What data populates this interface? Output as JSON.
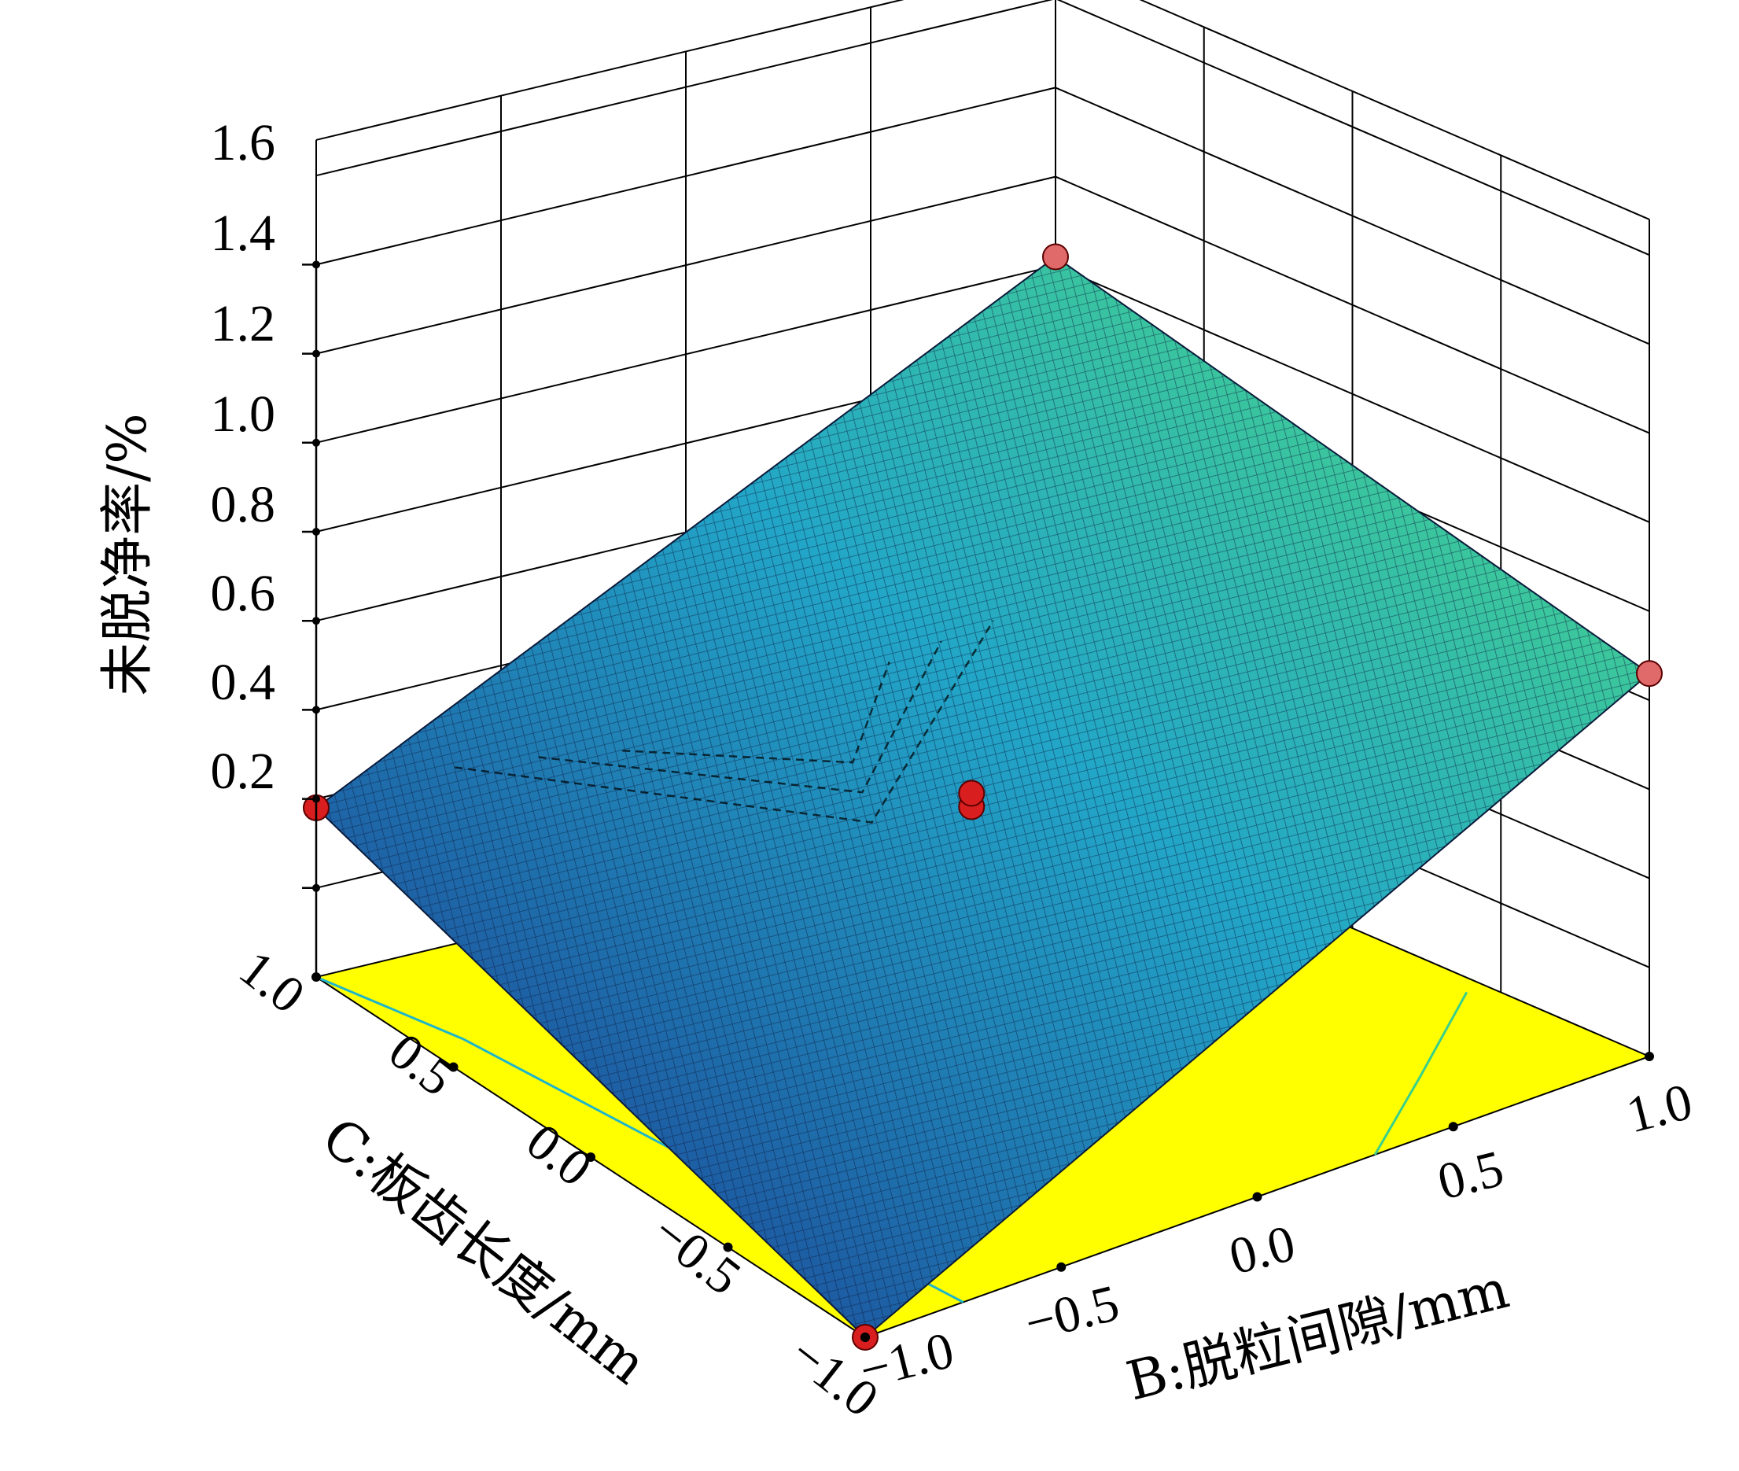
{
  "chart_data": {
    "type": "surface3d",
    "zlabel": "未脱净率/%",
    "xlabel": "B:脱粒间隙/mm",
    "ylabel": "C:板齿长度/mm",
    "z_ticks": [
      "0.2",
      "0.4",
      "0.6",
      "0.8",
      "1.0",
      "1.2",
      "1.4",
      "1.6"
    ],
    "x_ticks": [
      "−1.0",
      "−0.5",
      "0.0",
      "0.5",
      "1.0"
    ],
    "y_ticks": [
      "−1.0",
      "−0.5",
      "0.0",
      "0.5",
      "1.0"
    ],
    "zlim": [
      0.0,
      1.6
    ],
    "xlim": [
      -1.0,
      1.0
    ],
    "ylim": [
      -1.0,
      1.0
    ],
    "surface_corners": [
      {
        "B": -1.0,
        "C": 1.0,
        "z": 0.38
      },
      {
        "B": 1.0,
        "C": 1.0,
        "z": 1.22
      },
      {
        "B": 1.0,
        "C": -1.0,
        "z": 0.86
      },
      {
        "B": -1.0,
        "C": -1.0,
        "z": 0.0
      }
    ],
    "design_points": [
      {
        "B": -1.0,
        "C": 1.0,
        "z": 0.38
      },
      {
        "B": 1.0,
        "C": 1.0,
        "z": 1.22
      },
      {
        "B": 1.0,
        "C": -1.0,
        "z": 0.86
      },
      {
        "B": -1.0,
        "C": -1.0,
        "z": 0.0
      },
      {
        "B": 0.0,
        "C": 0.0,
        "z": 0.53
      },
      {
        "B": 0.0,
        "C": 0.0,
        "z": 0.56
      }
    ],
    "floor_contours": [
      {
        "level": "low"
      },
      {
        "level": "mid"
      },
      {
        "level": "high"
      }
    ],
    "colors": {
      "surface_low": "#1a2f8c",
      "surface_mid": "#22a6c8",
      "surface_high": "#4fe07a",
      "floor": "#ffff00",
      "points": "#d81e1e",
      "grid": "#000000"
    }
  }
}
